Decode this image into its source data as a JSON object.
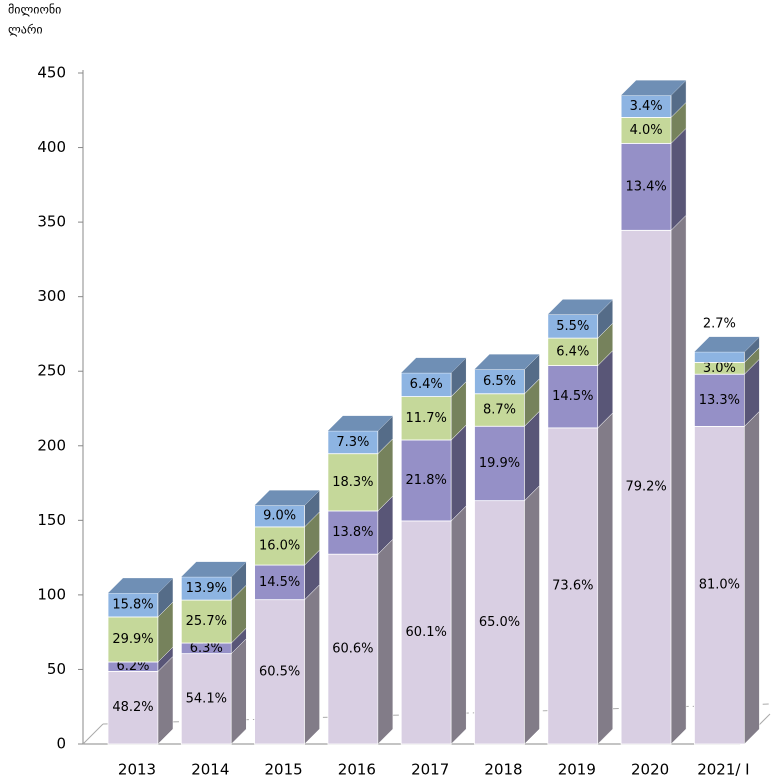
{
  "chart_data": {
    "type": "bar3d_stacked",
    "ylabel": [
      "მილიონი",
      "ლარი"
    ],
    "categories": [
      "2013",
      "2014",
      "2015",
      "2016",
      "2017",
      "2018",
      "2019",
      "2020",
      "2021/ I"
    ],
    "series": [
      {
        "color": "#d9cfe3",
        "values": [
          48.7,
          60.6,
          96.8,
          127.3,
          149.6,
          163.2,
          212.0,
          344.5,
          213.0
        ],
        "labels": [
          "48.2%",
          "54.1%",
          "60.5%",
          "60.6%",
          "60.1%",
          "65.0%",
          "73.6%",
          "79.2%",
          "81.0%"
        ]
      },
      {
        "color": "#9590c7",
        "values": [
          6.3,
          7.1,
          23.2,
          29.0,
          54.3,
          49.9,
          41.8,
          58.3,
          35.0
        ],
        "labels": [
          "6.2%",
          "6.3%",
          "14.5%",
          "13.8%",
          "21.8%",
          "19.9%",
          "14.5%",
          "13.4%",
          "13.3%"
        ]
      },
      {
        "color": "#c5d89a",
        "values": [
          30.2,
          28.8,
          25.6,
          38.4,
          29.1,
          21.8,
          18.4,
          17.4,
          7.9
        ],
        "labels": [
          "29.9%",
          "25.7%",
          "16.0%",
          "18.3%",
          "11.7%",
          "8.7%",
          "6.4%",
          "4.0%",
          "3.0%"
        ]
      },
      {
        "color": "#8db4e2",
        "values": [
          16.0,
          15.6,
          14.4,
          15.3,
          15.9,
          16.3,
          15.8,
          14.8,
          7.1
        ],
        "labels": [
          "15.8%",
          "13.9%",
          "9.0%",
          "7.3%",
          "6.4%",
          "6.5%",
          "5.5%",
          "3.4%",
          "2.7%"
        ]
      }
    ],
    "ylim": [
      0,
      450
    ],
    "yticks": [
      0,
      50,
      100,
      150,
      200,
      250,
      300,
      350,
      400,
      450
    ]
  }
}
